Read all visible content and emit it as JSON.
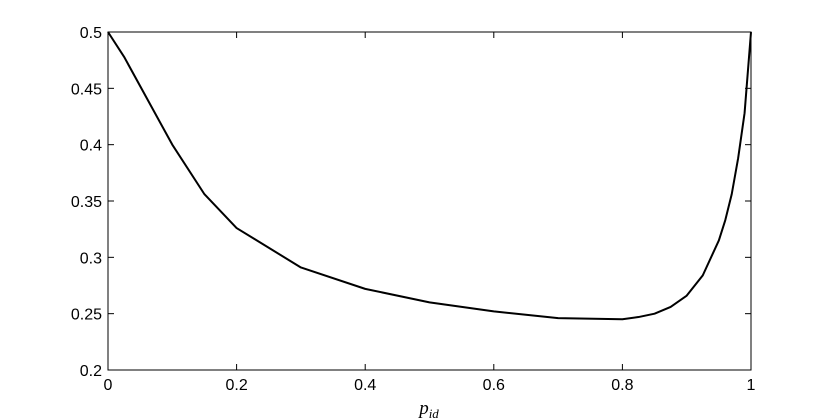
{
  "chart_data": {
    "type": "line",
    "xlabel": {
      "base": "p",
      "sub": "id"
    },
    "x": [
      0,
      0.025,
      0.1,
      0.15,
      0.2,
      0.3,
      0.4,
      0.5,
      0.6,
      0.7,
      0.8,
      0.825,
      0.85,
      0.875,
      0.9,
      0.925,
      0.95,
      0.96,
      0.97,
      0.98,
      0.99,
      1.0
    ],
    "series": [
      {
        "color": "#000000",
        "values": [
          0.5,
          0.478,
          0.4,
          0.356,
          0.326,
          0.291,
          0.272,
          0.26,
          0.252,
          0.246,
          0.245,
          0.247,
          0.25,
          0.256,
          0.266,
          0.284,
          0.315,
          0.333,
          0.356,
          0.388,
          0.428,
          0.5
        ]
      }
    ],
    "xlim": [
      0,
      1
    ],
    "ylim": [
      0.2,
      0.5
    ],
    "xticks": [
      0,
      0.2,
      0.4,
      0.6,
      0.8,
      1
    ],
    "yticks": [
      0.2,
      0.25,
      0.3,
      0.35,
      0.4,
      0.45,
      0.5
    ],
    "grid": false
  }
}
